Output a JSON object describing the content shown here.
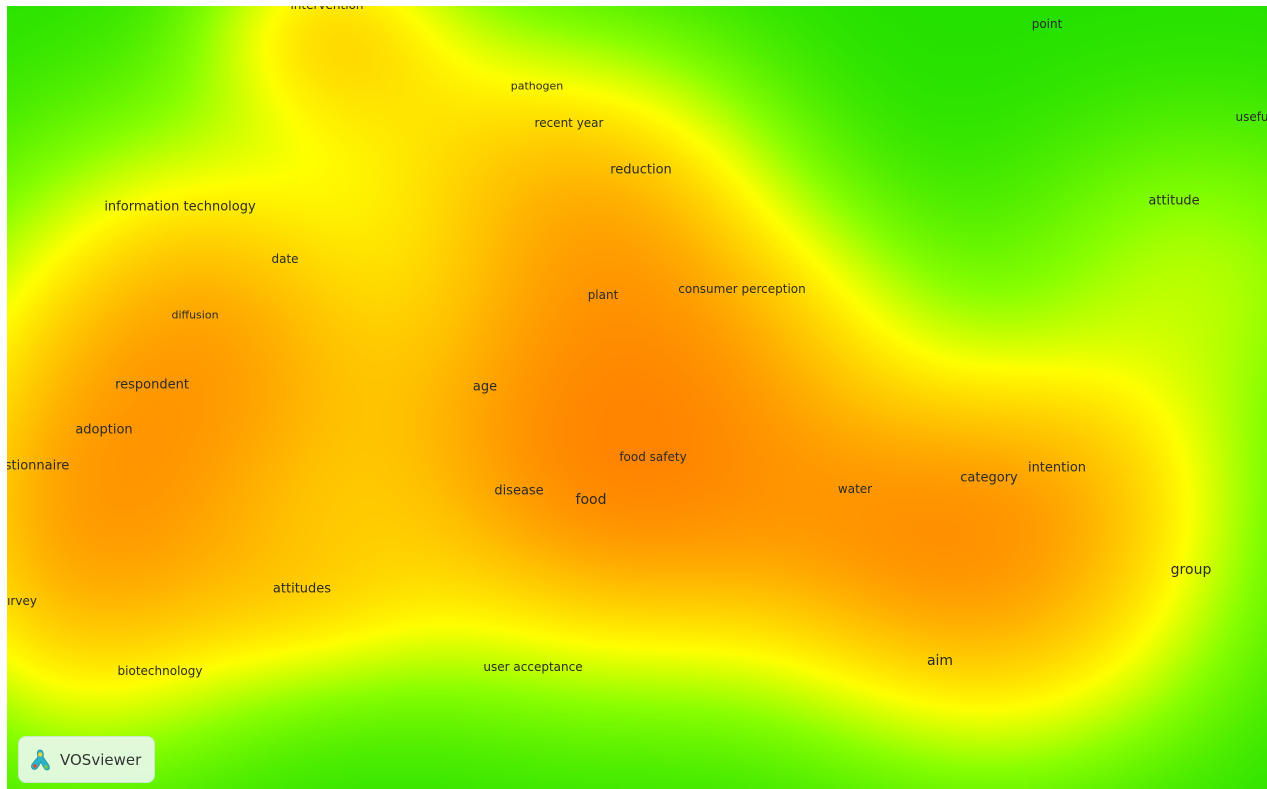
{
  "view": "density-visualization",
  "colors": {
    "low": "#22e000",
    "mid": "#ffff00",
    "high": "#ff5500"
  },
  "logo": {
    "icon": "vosviewer-logo-icon",
    "label": "VOSviewer"
  },
  "terms": [
    {
      "label": "intervention"
    },
    {
      "label": "point"
    },
    {
      "label": "pathogen"
    },
    {
      "label": "recent year"
    },
    {
      "label": "usefu"
    },
    {
      "label": "reduction"
    },
    {
      "label": "information technology"
    },
    {
      "label": "attitude"
    },
    {
      "label": "date"
    },
    {
      "label": "plant"
    },
    {
      "label": "consumer perception"
    },
    {
      "label": "diffusion"
    },
    {
      "label": "respondent"
    },
    {
      "label": "age"
    },
    {
      "label": "adoption"
    },
    {
      "label": "stionnaire"
    },
    {
      "label": "food safety"
    },
    {
      "label": "intention"
    },
    {
      "label": "category"
    },
    {
      "label": "disease"
    },
    {
      "label": "water"
    },
    {
      "label": "food"
    },
    {
      "label": "group"
    },
    {
      "label": "attitudes"
    },
    {
      "label": "ırvey"
    },
    {
      "label": "aim"
    },
    {
      "label": "user acceptance"
    },
    {
      "label": "biotechnology"
    }
  ]
}
